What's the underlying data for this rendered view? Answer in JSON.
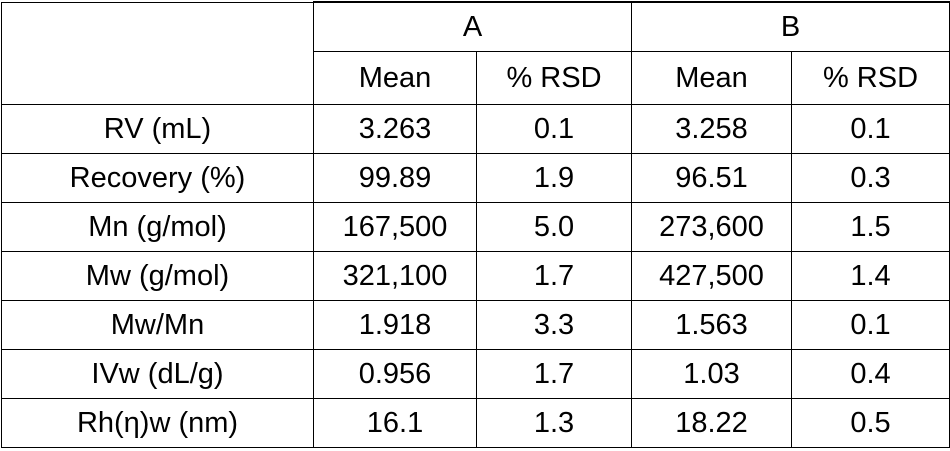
{
  "table": {
    "groups": [
      "A",
      "B"
    ],
    "subheaders": [
      "Mean",
      "% RSD",
      "Mean",
      "% RSD"
    ],
    "rows": [
      {
        "label": "RV (mL)",
        "values": [
          "3.263",
          "0.1",
          "3.258",
          "0.1"
        ]
      },
      {
        "label": "Recovery (%)",
        "values": [
          "99.89",
          "1.9",
          "96.51",
          "0.3"
        ]
      },
      {
        "label": "Mn (g/mol)",
        "values": [
          "167,500",
          "5.0",
          "273,600",
          "1.5"
        ]
      },
      {
        "label": "Mw (g/mol)",
        "values": [
          "321,100",
          "1.7",
          "427,500",
          "1.4"
        ]
      },
      {
        "label": "Mw/Mn",
        "values": [
          "1.918",
          "3.3",
          "1.563",
          "0.1"
        ]
      },
      {
        "label": "IVw (dL/g)",
        "values": [
          "0.956",
          "1.7",
          "1.03",
          "0.4"
        ]
      },
      {
        "label": "Rh(η)w (nm)",
        "values": [
          "16.1",
          "1.3",
          "18.22",
          "0.5"
        ]
      }
    ]
  }
}
